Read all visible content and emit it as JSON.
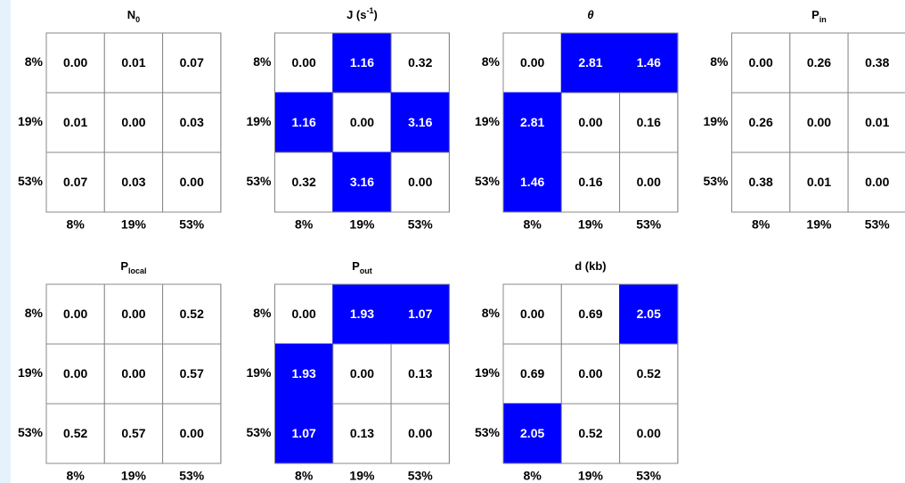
{
  "chart_data": [
    {
      "type": "heatmap",
      "title": [
        {
          "text": "N"
        },
        {
          "text": "0",
          "script": "sub"
        }
      ],
      "x": [
        "8%",
        "19%",
        "53%"
      ],
      "y": [
        "8%",
        "19%",
        "53%"
      ],
      "values": [
        [
          0,
          0.01,
          0.07
        ],
        [
          0.01,
          0,
          0.03
        ],
        [
          0.07,
          0.03,
          0
        ]
      ],
      "value_labels": [
        [
          "0.00",
          "0.01",
          "0.07"
        ],
        [
          "0.01",
          "0.00",
          "0.03"
        ],
        [
          "0.07",
          "0.03",
          "0.00"
        ]
      ],
      "cell_colors": [
        [
          "#ffffff",
          "#ffffff",
          "#ffffff"
        ],
        [
          "#ffffff",
          "#ffffff",
          "#ffffff"
        ],
        [
          "#ffffff",
          "#ffffff",
          "#ffffff"
        ]
      ]
    },
    {
      "type": "heatmap",
      "title": [
        {
          "text": "J (s"
        },
        {
          "text": "-1",
          "script": "super"
        },
        {
          "text": ")"
        }
      ],
      "x": [
        "8%",
        "19%",
        "53%"
      ],
      "y": [
        "8%",
        "19%",
        "53%"
      ],
      "values": [
        [
          0,
          1.16,
          0.32
        ],
        [
          1.16,
          0,
          3.16
        ],
        [
          0.32,
          3.16,
          0
        ]
      ],
      "value_labels": [
        [
          "0.00",
          "1.16",
          "0.32"
        ],
        [
          "1.16",
          "0.00",
          "3.16"
        ],
        [
          "0.32",
          "3.16",
          "0.00"
        ]
      ],
      "cell_colors": [
        [
          "#ffffff",
          "#0000ff",
          "#ffffff"
        ],
        [
          "#0000ff",
          "#ffffff",
          "#0000ff"
        ],
        [
          "#ffffff",
          "#0000ff",
          "#ffffff"
        ]
      ]
    },
    {
      "type": "heatmap",
      "title": [
        {
          "text": "θ",
          "style": "italic"
        }
      ],
      "x": [
        "8%",
        "19%",
        "53%"
      ],
      "y": [
        "8%",
        "19%",
        "53%"
      ],
      "values": [
        [
          0,
          2.81,
          1.46
        ],
        [
          2.81,
          0,
          0.16
        ],
        [
          1.46,
          0.16,
          0
        ]
      ],
      "value_labels": [
        [
          "0.00",
          "2.81",
          "1.46"
        ],
        [
          "2.81",
          "0.00",
          "0.16"
        ],
        [
          "1.46",
          "0.16",
          "0.00"
        ]
      ],
      "cell_colors": [
        [
          "#ffffff",
          "#0000ff",
          "#0000ff"
        ],
        [
          "#0000ff",
          "#ffffff",
          "#ffffff"
        ],
        [
          "#0000ff",
          "#ffffff",
          "#ffffff"
        ]
      ]
    },
    {
      "type": "heatmap",
      "title": [
        {
          "text": "P"
        },
        {
          "text": "in",
          "script": "sub"
        }
      ],
      "x": [
        "8%",
        "19%",
        "53%"
      ],
      "y": [
        "8%",
        "19%",
        "53%"
      ],
      "values": [
        [
          0,
          0.26,
          0.38
        ],
        [
          0.26,
          0,
          0.01
        ],
        [
          0.38,
          0.01,
          0
        ]
      ],
      "value_labels": [
        [
          "0.00",
          "0.26",
          "0.38"
        ],
        [
          "0.26",
          "0.00",
          "0.01"
        ],
        [
          "0.38",
          "0.01",
          "0.00"
        ]
      ],
      "cell_colors": [
        [
          "#ffffff",
          "#ffffff",
          "#ffffff"
        ],
        [
          "#ffffff",
          "#ffffff",
          "#ffffff"
        ],
        [
          "#ffffff",
          "#ffffff",
          "#ffffff"
        ]
      ]
    },
    {
      "type": "heatmap",
      "title": [
        {
          "text": "P"
        },
        {
          "text": "local",
          "script": "sub"
        }
      ],
      "x": [
        "8%",
        "19%",
        "53%"
      ],
      "y": [
        "8%",
        "19%",
        "53%"
      ],
      "values": [
        [
          0,
          0,
          0.52
        ],
        [
          0,
          0,
          0.57
        ],
        [
          0.52,
          0.57,
          0
        ]
      ],
      "value_labels": [
        [
          "0.00",
          "0.00",
          "0.52"
        ],
        [
          "0.00",
          "0.00",
          "0.57"
        ],
        [
          "0.52",
          "0.57",
          "0.00"
        ]
      ],
      "cell_colors": [
        [
          "#ffffff",
          "#ffffff",
          "#ffffff"
        ],
        [
          "#ffffff",
          "#ffffff",
          "#ffffff"
        ],
        [
          "#ffffff",
          "#ffffff",
          "#ffffff"
        ]
      ]
    },
    {
      "type": "heatmap",
      "title": [
        {
          "text": "P"
        },
        {
          "text": "out",
          "script": "sub"
        }
      ],
      "x": [
        "8%",
        "19%",
        "53%"
      ],
      "y": [
        "8%",
        "19%",
        "53%"
      ],
      "values": [
        [
          0,
          1.93,
          1.07
        ],
        [
          1.93,
          0,
          0.13
        ],
        [
          1.07,
          0.13,
          0
        ]
      ],
      "value_labels": [
        [
          "0.00",
          "1.93",
          "1.07"
        ],
        [
          "1.93",
          "0.00",
          "0.13"
        ],
        [
          "1.07",
          "0.13",
          "0.00"
        ]
      ],
      "cell_colors": [
        [
          "#ffffff",
          "#0000ff",
          "#0000ff"
        ],
        [
          "#0000ff",
          "#ffffff",
          "#ffffff"
        ],
        [
          "#0000ff",
          "#ffffff",
          "#ffffff"
        ]
      ]
    },
    {
      "type": "heatmap",
      "title": [
        {
          "text": "d (kb)"
        }
      ],
      "x": [
        "8%",
        "19%",
        "53%"
      ],
      "y": [
        "8%",
        "19%",
        "53%"
      ],
      "values": [
        [
          0,
          0.69,
          2.05
        ],
        [
          0.69,
          0,
          0.52
        ],
        [
          2.05,
          0.52,
          0
        ]
      ],
      "value_labels": [
        [
          "0.00",
          "0.69",
          "2.05"
        ],
        [
          "0.69",
          "0.00",
          "0.52"
        ],
        [
          "2.05",
          "0.52",
          "0.00"
        ]
      ],
      "cell_colors": [
        [
          "#ffffff",
          "#ffffff",
          "#0000ff"
        ],
        [
          "#ffffff",
          "#ffffff",
          "#ffffff"
        ],
        [
          "#0000ff",
          "#ffffff",
          "#ffffff"
        ]
      ]
    }
  ]
}
